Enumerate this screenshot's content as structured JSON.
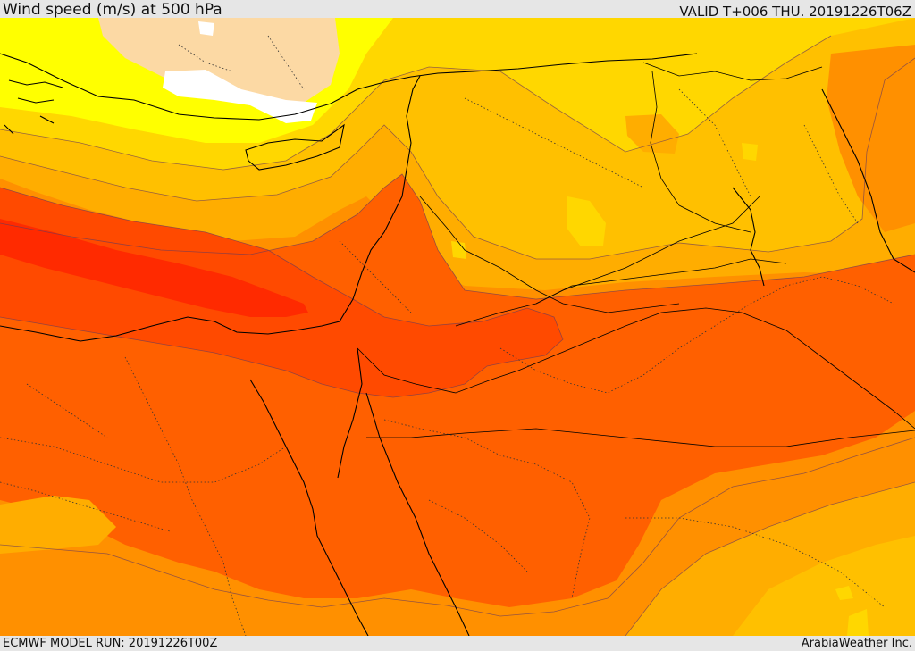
{
  "header": {
    "title": "Wind speed (m/s) at 500 hPa",
    "valid": "VALID T+006 THU. 20191226T06Z"
  },
  "footer": {
    "model_run": "ECMWF MODEL RUN: 20191226T00Z",
    "credit": "ArabiaWeather Inc."
  },
  "colors": {
    "white": "#ffffff",
    "peach": "#fcd9a4",
    "yellow": "#ffff00",
    "gold": "#ffd700",
    "amber": "#ffc000",
    "light_orange": "#ffad00",
    "orange": "#ff9000",
    "dark_orange": "#ff6000",
    "red_orange": "#ff4a00",
    "red": "#ff2a00"
  }
}
